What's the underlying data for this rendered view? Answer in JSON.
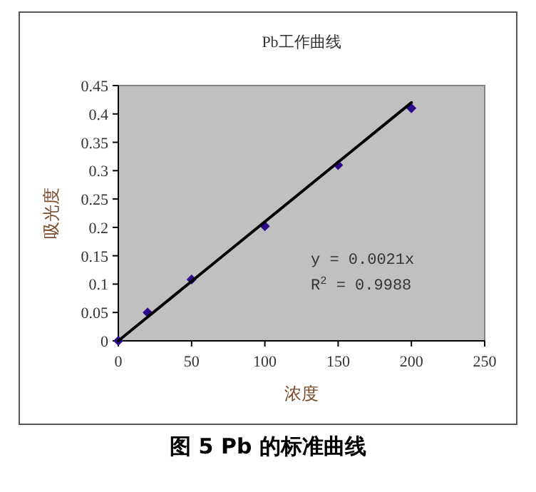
{
  "chart_data": {
    "type": "scatter",
    "title": "Pb工作曲线",
    "xlabel": "浓度",
    "ylabel": "吸光度",
    "xlim": [
      0,
      250
    ],
    "xticks": [
      0,
      50,
      100,
      150,
      200,
      250
    ],
    "ylim": [
      0,
      0.45
    ],
    "yticks": [
      0,
      0.05,
      0.1,
      0.15,
      0.2,
      0.25,
      0.3,
      0.35,
      0.4,
      0.45
    ],
    "grid": false,
    "series": [
      {
        "marker": "diamond",
        "color": "#2e0a8c",
        "x": [
          0,
          20,
          50,
          100,
          150,
          200
        ],
        "values": [
          0,
          0.05,
          0.108,
          0.202,
          0.31,
          0.41
        ]
      },
      {
        "type": "line",
        "color": "#000000",
        "x": [
          0,
          200
        ],
        "values": [
          0,
          0.42
        ]
      }
    ],
    "annotations": [
      "y = 0.0021x",
      "R$^{2}$ = 0.9988",
      "图 5 Pb 的标准曲线"
    ]
  }
}
